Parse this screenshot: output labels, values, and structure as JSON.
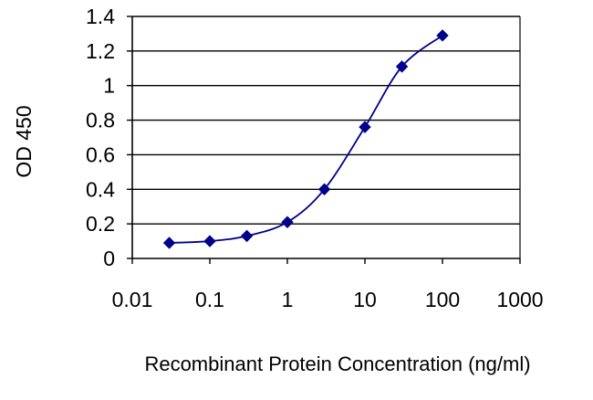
{
  "chart_data": {
    "type": "line",
    "title": "",
    "xlabel": "Recombinant Protein Concentration (ng/ml)",
    "ylabel": "OD 450",
    "x_scale": "log",
    "xlim": [
      0.01,
      1000
    ],
    "ylim": [
      0,
      1.4
    ],
    "x_ticks": [
      0.01,
      0.1,
      1,
      10,
      100,
      1000
    ],
    "x_tick_labels": [
      "0.01",
      "0.1",
      "1",
      "10",
      "100",
      "1000"
    ],
    "y_ticks": [
      0,
      0.2,
      0.4,
      0.6,
      0.8,
      1,
      1.2,
      1.4
    ],
    "y_tick_labels": [
      "0",
      "0.2",
      "0.4",
      "0.6",
      "0.8",
      "1",
      "1.2",
      "1.4"
    ],
    "grid": "horizontal",
    "legend": "none",
    "series": [
      {
        "color": "#00008B",
        "marker": "diamond",
        "x": [
          0.03,
          0.1,
          0.3,
          1,
          3,
          10,
          30,
          100
        ],
        "y": [
          0.09,
          0.1,
          0.13,
          0.21,
          0.4,
          0.76,
          1.11,
          1.29
        ]
      }
    ]
  }
}
